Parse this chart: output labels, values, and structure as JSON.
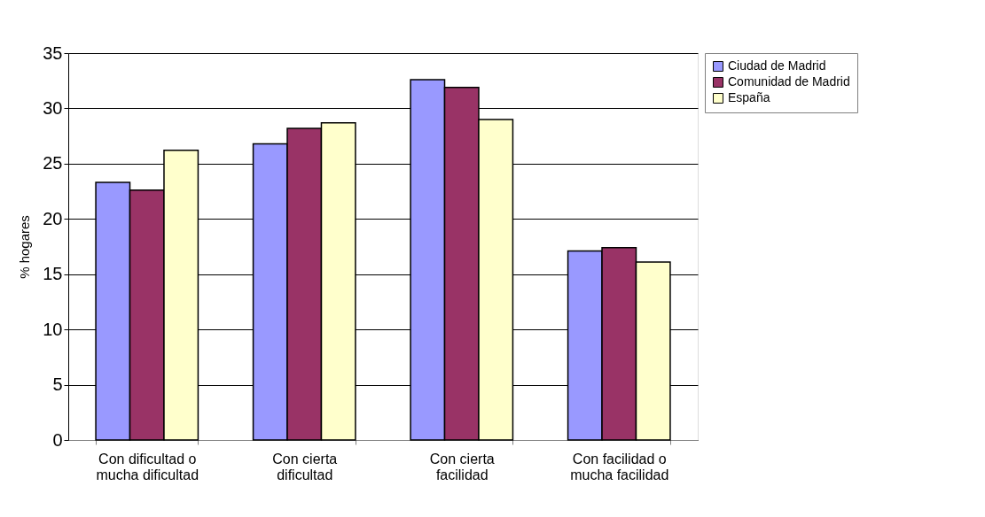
{
  "chart_data": {
    "type": "bar",
    "ylabel": "% hogares",
    "categories": [
      "Con dificultad o mucha dificultad",
      "Con cierta dificultad",
      "Con cierta facilidad",
      "Con facilidad o mucha facilidad"
    ],
    "series": [
      {
        "name": "Ciudad de Madrid",
        "color": "#9999ff",
        "values": [
          23.3,
          26.8,
          32.6,
          17.1
        ]
      },
      {
        "name": "Comunidad de Madrid",
        "color": "#993366",
        "values": [
          22.6,
          28.2,
          31.9,
          17.4
        ]
      },
      {
        "name": "España",
        "color": "#ffffcc",
        "values": [
          26.2,
          28.7,
          29.0,
          16.1
        ]
      }
    ],
    "ylim": [
      0,
      35
    ],
    "yticks": [
      0,
      5,
      10,
      15,
      20,
      25,
      30,
      35
    ],
    "grid": "y",
    "legend": "right"
  }
}
